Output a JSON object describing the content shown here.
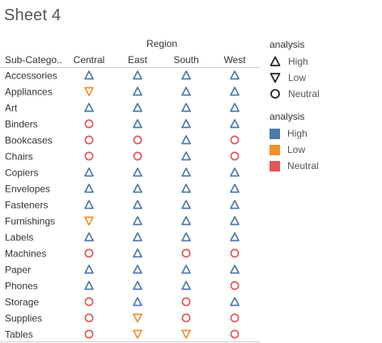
{
  "sheet": {
    "title": "Sheet 4"
  },
  "chart_data": {
    "type": "table",
    "column_header": "Region",
    "row_header": "Sub-Catego..",
    "columns": [
      "Central",
      "East",
      "South",
      "West"
    ],
    "rows": [
      {
        "label": "Accessories",
        "values": [
          "High",
          "High",
          "High",
          "High"
        ]
      },
      {
        "label": "Appliances",
        "values": [
          "Low",
          "High",
          "High",
          "High"
        ]
      },
      {
        "label": "Art",
        "values": [
          "High",
          "High",
          "High",
          "High"
        ]
      },
      {
        "label": "Binders",
        "values": [
          "Neutral",
          "High",
          "High",
          "High"
        ]
      },
      {
        "label": "Bookcases",
        "values": [
          "Neutral",
          "Neutral",
          "High",
          "Neutral"
        ]
      },
      {
        "label": "Chairs",
        "values": [
          "Neutral",
          "Neutral",
          "High",
          "Neutral"
        ]
      },
      {
        "label": "Copiers",
        "values": [
          "High",
          "High",
          "High",
          "High"
        ]
      },
      {
        "label": "Envelopes",
        "values": [
          "High",
          "High",
          "High",
          "High"
        ]
      },
      {
        "label": "Fasteners",
        "values": [
          "High",
          "High",
          "High",
          "High"
        ]
      },
      {
        "label": "Furnishings",
        "values": [
          "Low",
          "High",
          "High",
          "High"
        ]
      },
      {
        "label": "Labels",
        "values": [
          "High",
          "High",
          "High",
          "High"
        ]
      },
      {
        "label": "Machines",
        "values": [
          "Neutral",
          "High",
          "Neutral",
          "Neutral"
        ]
      },
      {
        "label": "Paper",
        "values": [
          "High",
          "High",
          "High",
          "High"
        ]
      },
      {
        "label": "Phones",
        "values": [
          "High",
          "High",
          "High",
          "Neutral"
        ]
      },
      {
        "label": "Storage",
        "values": [
          "Neutral",
          "High",
          "Neutral",
          "High"
        ]
      },
      {
        "label": "Supplies",
        "values": [
          "Neutral",
          "Low",
          "Neutral",
          "Neutral"
        ]
      },
      {
        "label": "Tables",
        "values": [
          "Neutral",
          "Low",
          "Low",
          "Neutral"
        ]
      }
    ],
    "colors": {
      "High": "#4e79a7",
      "Low": "#f28e2b",
      "Neutral": "#e15759"
    },
    "shapes": {
      "High": "triangle-up",
      "Low": "triangle-down",
      "Neutral": "circle"
    }
  },
  "legends": {
    "shape": {
      "title": "analysis",
      "items": [
        {
          "label": "High",
          "icon": "triangle-up-icon"
        },
        {
          "label": "Low",
          "icon": "triangle-down-icon"
        },
        {
          "label": "Neutral",
          "icon": "circle-icon"
        }
      ]
    },
    "color": {
      "title": "analysis",
      "items": [
        {
          "label": "High",
          "color": "#4e79a7"
        },
        {
          "label": "Low",
          "color": "#f28e2b"
        },
        {
          "label": "Neutral",
          "color": "#e15759"
        }
      ]
    }
  }
}
